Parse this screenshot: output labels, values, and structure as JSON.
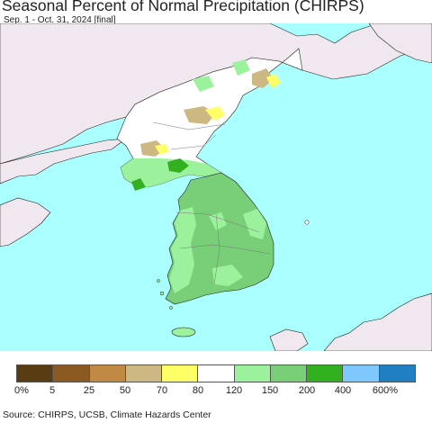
{
  "title": "Seasonal Percent of Normal Precipitation (CHIRPS)",
  "subtitle": "Sep. 1 - Oct. 31, 2024 [final]",
  "legend": {
    "colors": [
      "#5a3c12",
      "#8a5a22",
      "#c08a45",
      "#cdb782",
      "#ffff66",
      "#ffffff",
      "#9cf29c",
      "#78cf78",
      "#33b020",
      "#7fc8ff",
      "#1f7fc0"
    ],
    "labels": [
      "0%",
      "5",
      "25",
      "50",
      "70",
      "80",
      "120",
      "150",
      "200",
      "400",
      "600%"
    ]
  },
  "colors": {
    "sea": "#aaffff",
    "land_outside": "#f0e8ee",
    "normal": "#ffffff",
    "wet_light": "#9cf29c",
    "wet_medium": "#78cf78",
    "wet_high": "#33b020",
    "dry_tan": "#cdb782",
    "dry_yellow": "#ffff66"
  },
  "source": "Source: CHIRPS, UCSB, Climate Hazards Center"
}
